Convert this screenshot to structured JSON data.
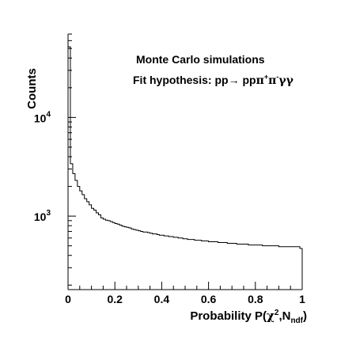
{
  "chart_data": {
    "type": "histogram",
    "title": "",
    "xlabel": {
      "prefix": "Probability P(",
      "chi": "χ",
      "two": "2",
      "mid": ",N",
      "sub": "ndf",
      "suffix": ")"
    },
    "ylabel": "Counts",
    "xlim": [
      0,
      1
    ],
    "ylim": [
      180,
      70000
    ],
    "y_scale": "log",
    "grid": false,
    "legend": "none",
    "x_ticks": [
      {
        "value": 0,
        "label": "0"
      },
      {
        "value": 0.2,
        "label": "0.2"
      },
      {
        "value": 0.4,
        "label": "0.4"
      },
      {
        "value": 0.6,
        "label": "0.6"
      },
      {
        "value": 0.8,
        "label": "0.8"
      },
      {
        "value": 1,
        "label": "1"
      }
    ],
    "y_labeled_ticks": [
      {
        "value": 1000,
        "base": "10",
        "exp": "3"
      },
      {
        "value": 10000,
        "base": "10",
        "exp": "4"
      }
    ],
    "annotations": [
      {
        "text": "Monte Carlo simulations"
      }
    ],
    "hypothesis": {
      "prefix": "Fit hypothesis: pp",
      "arrow": "→",
      "p": " pp",
      "pi1": "π",
      "plus": "+",
      "pi2": "π",
      "minus": "-",
      "gg": "γγ"
    },
    "bins": 100,
    "bin_width": 0.01,
    "values": [
      52000,
      3400,
      2700,
      2300,
      2000,
      1800,
      1650,
      1500,
      1400,
      1300,
      1200,
      1150,
      1080,
      1030,
      960,
      930,
      910,
      900,
      880,
      860,
      840,
      830,
      810,
      790,
      780,
      770,
      760,
      740,
      730,
      720,
      710,
      700,
      690,
      690,
      680,
      670,
      660,
      660,
      650,
      640,
      640,
      630,
      630,
      620,
      620,
      610,
      610,
      600,
      600,
      590,
      590,
      580,
      580,
      580,
      570,
      570,
      570,
      560,
      560,
      560,
      550,
      550,
      550,
      550,
      540,
      540,
      540,
      540,
      530,
      530,
      530,
      530,
      520,
      520,
      520,
      520,
      520,
      510,
      510,
      510,
      510,
      510,
      510,
      500,
      500,
      500,
      500,
      500,
      500,
      500,
      490,
      490,
      490,
      490,
      490,
      490,
      490,
      490,
      490,
      470
    ]
  }
}
